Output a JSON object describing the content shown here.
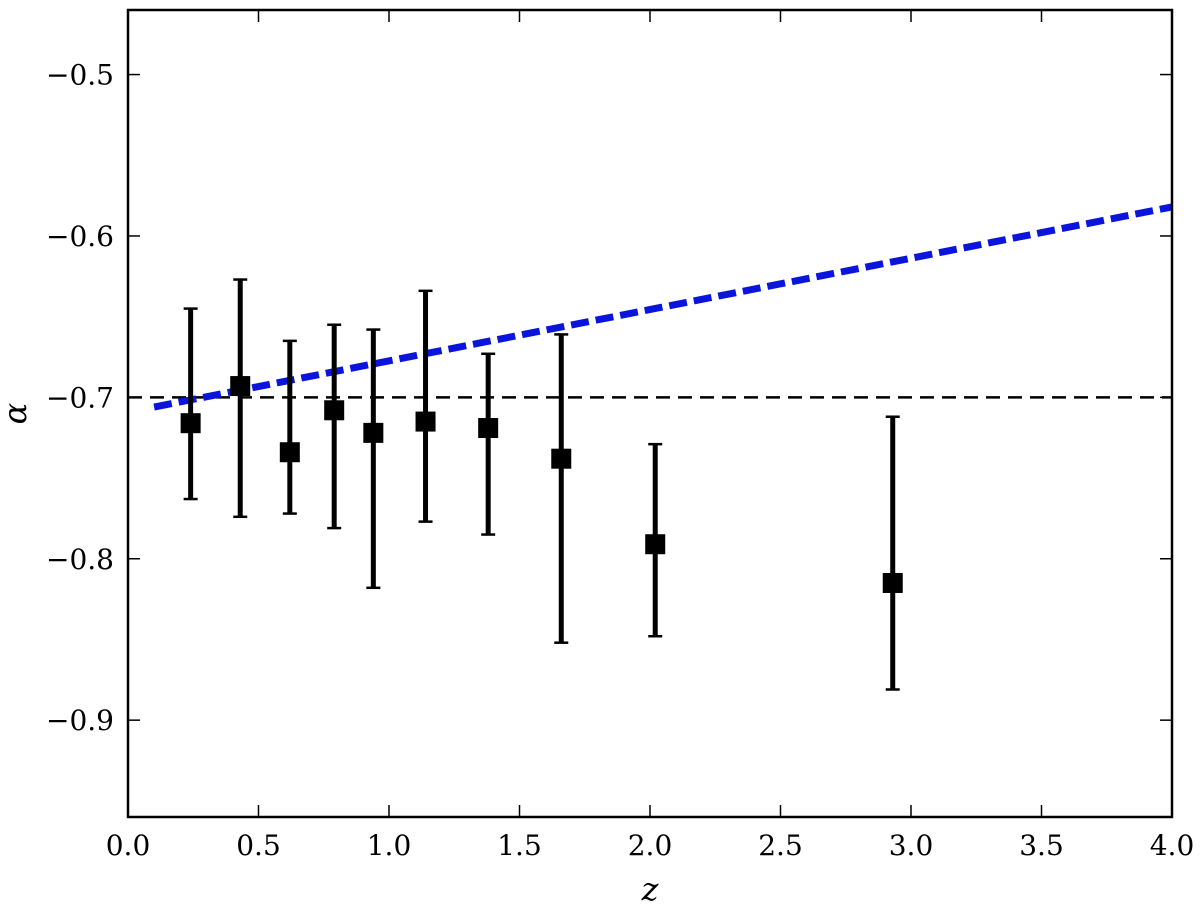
{
  "chart_data": {
    "type": "scatter",
    "xlabel": "z",
    "ylabel": "α",
    "xlim": [
      0.0,
      4.0
    ],
    "ylim": [
      -0.96,
      -0.46
    ],
    "xticks": [
      0.0,
      0.5,
      1.0,
      1.5,
      2.0,
      2.5,
      3.0,
      3.5,
      4.0
    ],
    "xtick_labels": [
      "0.0",
      "0.5",
      "1.0",
      "1.5",
      "2.0",
      "2.5",
      "3.0",
      "3.5",
      "4.0"
    ],
    "yticks": [
      -0.5,
      -0.6,
      -0.7,
      -0.8,
      -0.9
    ],
    "ytick_labels": [
      "−0.5",
      "−0.6",
      "−0.7",
      "−0.8",
      "−0.9"
    ],
    "grid": false,
    "points": [
      {
        "x": 0.24,
        "y": -0.716,
        "ylow": -0.763,
        "yhigh": -0.645
      },
      {
        "x": 0.43,
        "y": -0.693,
        "ylow": -0.774,
        "yhigh": -0.627
      },
      {
        "x": 0.62,
        "y": -0.734,
        "ylow": -0.772,
        "yhigh": -0.665
      },
      {
        "x": 0.79,
        "y": -0.708,
        "ylow": -0.781,
        "yhigh": -0.655
      },
      {
        "x": 0.94,
        "y": -0.722,
        "ylow": -0.818,
        "yhigh": -0.658
      },
      {
        "x": 1.14,
        "y": -0.715,
        "ylow": -0.777,
        "yhigh": -0.634
      },
      {
        "x": 1.38,
        "y": -0.719,
        "ylow": -0.785,
        "yhigh": -0.673
      },
      {
        "x": 1.66,
        "y": -0.738,
        "ylow": -0.852,
        "yhigh": -0.661
      },
      {
        "x": 2.02,
        "y": -0.791,
        "ylow": -0.848,
        "yhigh": -0.729
      },
      {
        "x": 2.93,
        "y": -0.815,
        "ylow": -0.881,
        "yhigh": -0.712
      }
    ],
    "reference_line": {
      "y": -0.7,
      "style": "dashed",
      "color": "#000000"
    },
    "model_line": {
      "x": [
        0.1,
        4.0
      ],
      "y": [
        -0.706,
        -0.582
      ],
      "style": "dashed",
      "color": "#0a14dc"
    },
    "marker_color": "#000000"
  }
}
